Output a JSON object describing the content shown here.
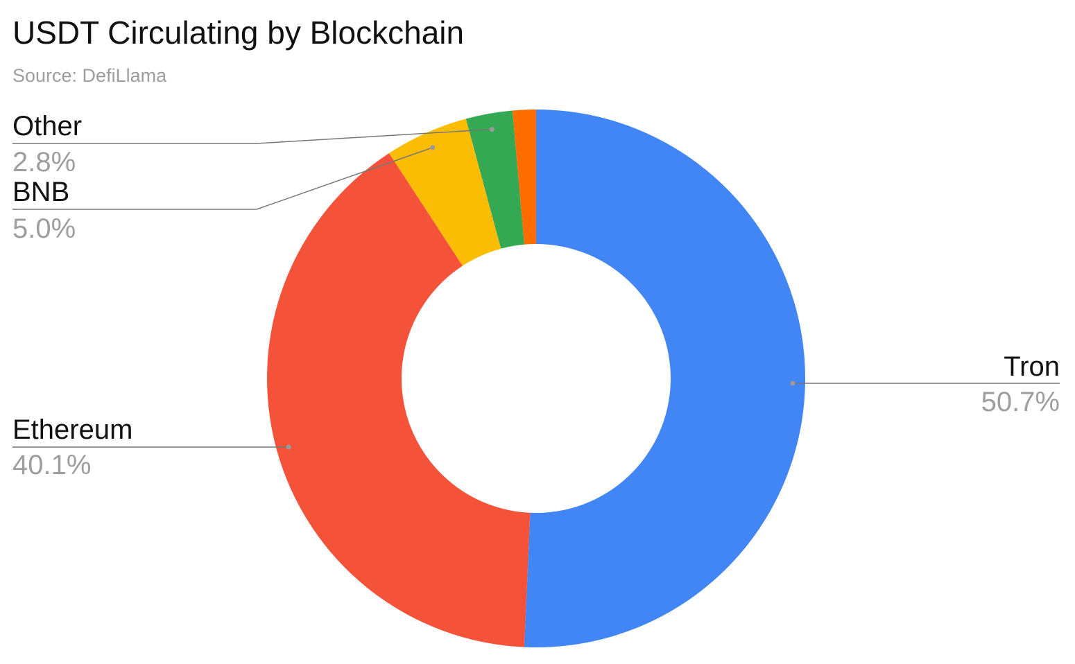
{
  "chart_data": {
    "type": "donut",
    "title": "USDT Circulating by Blockchain",
    "subtitle": "Source: DefiLlama",
    "categories": [
      "Tron",
      "Ethereum",
      "BNB",
      "Other",
      null
    ],
    "values": [
      50.7,
      40.1,
      5.0,
      2.8,
      1.4
    ],
    "value_labels": [
      "50.7%",
      "40.1%",
      "5.0%",
      "2.8%",
      null
    ],
    "colors": [
      "#4285f4",
      "#f4533a",
      "#fbbc04",
      "#34a853",
      "#ff6d01"
    ]
  }
}
